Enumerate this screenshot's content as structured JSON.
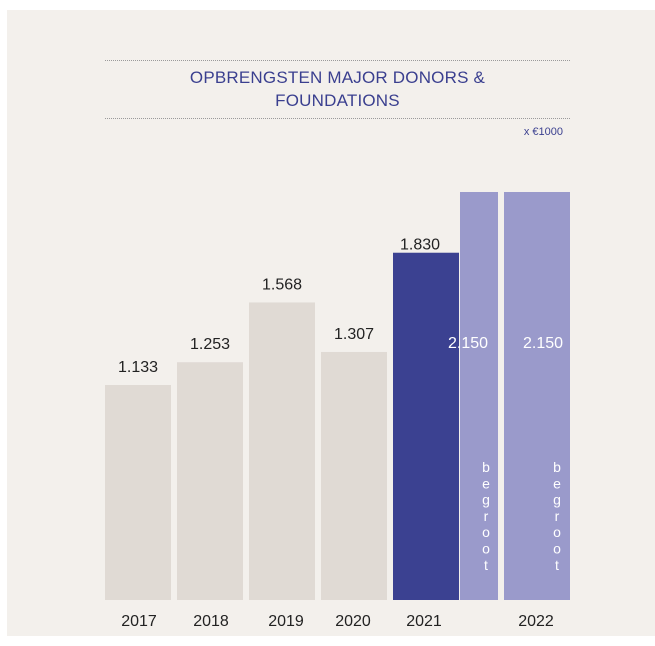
{
  "header": {
    "title_line1": "OPBRENGSTEN MAJOR DONORS &",
    "title_line2": "FOUNDATIONS",
    "unit": "x €1000"
  },
  "colors": {
    "background": "#f3f0ec",
    "past_bar": "#e0dad4",
    "current_bar": "#3b4191",
    "budget_bar": "#9a9acb",
    "title": "#3a3f8f"
  },
  "chart_data": {
    "type": "bar",
    "categories": [
      "2017",
      "2018",
      "2019",
      "2020",
      "2021",
      "2021 begroot",
      "2022 begroot"
    ],
    "values": [
      1133,
      1253,
      1568,
      1307,
      1830,
      2150,
      2150
    ],
    "value_labels": [
      "1.133",
      "1.253",
      "1.568",
      "1.307",
      "1.830",
      "2.150",
      "2.150"
    ],
    "x_tick_labels": [
      "2017",
      "2018",
      "2019",
      "2020",
      "2021",
      "",
      "2022"
    ],
    "bar_annotations": [
      "",
      "",
      "",
      "",
      "",
      "begroot",
      "begroot"
    ],
    "ylim": [
      0,
      2150
    ],
    "grid": false,
    "legend": "none",
    "title": "OPBRENGSTEN MAJOR DONORS & FOUNDATIONS",
    "unit": "x €1000"
  }
}
